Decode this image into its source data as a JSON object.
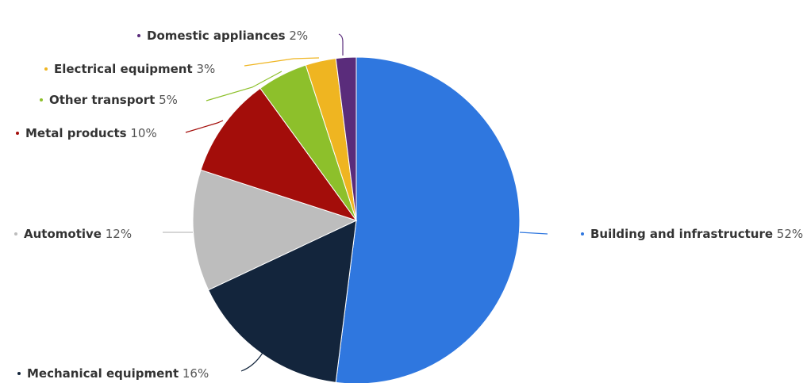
{
  "chart_data": {
    "type": "pie",
    "title": "",
    "categories": [
      "Building and infrastructure",
      "Mechanical equipment",
      "Automotive",
      "Metal products",
      "Other transport",
      "Electrical equipment",
      "Domestic appliances"
    ],
    "values": [
      52,
      16,
      12,
      10,
      5,
      3,
      2
    ],
    "value_labels": [
      "52%",
      "16%",
      "12%",
      "10%",
      "5%",
      "3%",
      "2%"
    ],
    "colors": [
      "#2f77df",
      "#13253c",
      "#bdbdbd",
      "#a30d0a",
      "#8dc02b",
      "#efb521",
      "#5a2c7b"
    ],
    "unit": "%",
    "start_angle": "top, clockwise",
    "legend": "none (data labels with connector lines)"
  }
}
